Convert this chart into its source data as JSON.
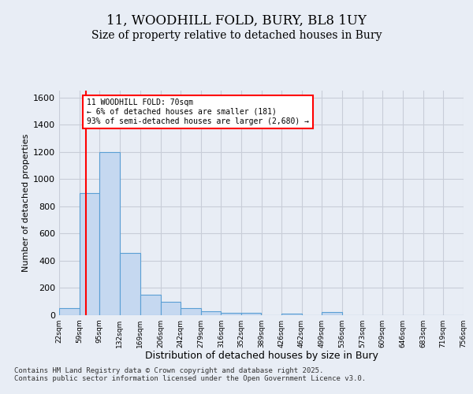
{
  "title_line1": "11, WOODHILL FOLD, BURY, BL8 1UY",
  "title_line2": "Size of property relative to detached houses in Bury",
  "xlabel": "Distribution of detached houses by size in Bury",
  "ylabel": "Number of detached properties",
  "footer": "Contains HM Land Registry data © Crown copyright and database right 2025.\nContains public sector information licensed under the Open Government Licence v3.0.",
  "bin_edges": [
    22,
    59,
    95,
    132,
    169,
    206,
    242,
    279,
    316,
    352,
    389,
    426,
    462,
    499,
    536,
    573,
    609,
    646,
    683,
    719,
    756
  ],
  "bar_heights": [
    50,
    900,
    1200,
    460,
    150,
    100,
    50,
    30,
    20,
    15,
    0,
    10,
    0,
    25,
    0,
    0,
    0,
    0,
    0,
    0
  ],
  "bar_color": "#c5d8f0",
  "bar_edgecolor": "#5a9fd4",
  "red_line_x": 70,
  "annotation_text": "11 WOODHILL FOLD: 70sqm\n← 6% of detached houses are smaller (181)\n93% of semi-detached houses are larger (2,680) →",
  "annotation_box_color": "white",
  "annotation_box_edgecolor": "red",
  "red_line_color": "red",
  "ylim": [
    0,
    1650
  ],
  "yticks": [
    0,
    200,
    400,
    600,
    800,
    1000,
    1200,
    1400,
    1600
  ],
  "bg_color": "#e8edf5",
  "plot_bg_color": "#e8edf5",
  "grid_color": "#c8cdd8",
  "title_fontsize": 12,
  "subtitle_fontsize": 10
}
